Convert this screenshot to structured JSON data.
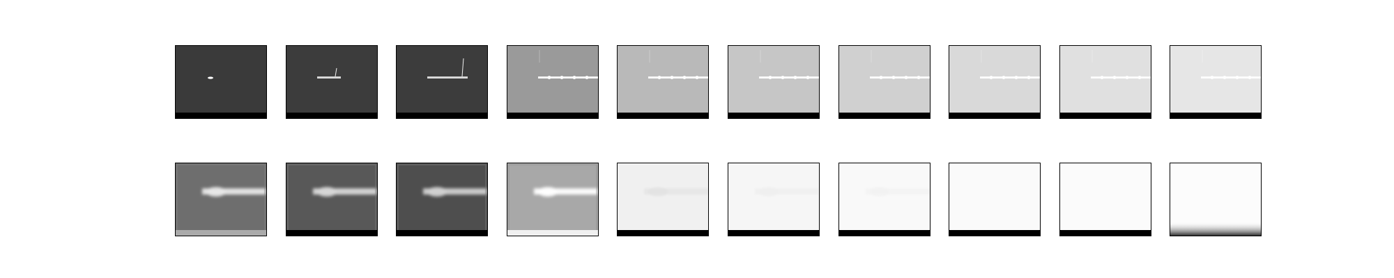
{
  "figure": {
    "rows": [
      {
        "name": "top-row",
        "panels": [
          {
            "bg": "#3a3a3a",
            "streak": "#ffffff",
            "bar": "#000000",
            "variant": "dot"
          },
          {
            "bg": "#3c3c3c",
            "streak": "#f2f2f2",
            "bar": "#000000",
            "variant": "boat-short"
          },
          {
            "bg": "#3c3c3c",
            "streak": "#f2f2f2",
            "bar": "#000000",
            "variant": "boat-long"
          },
          {
            "bg": "#9a9a9a",
            "streak": "#ffffff",
            "bar": "#000000",
            "variant": "line"
          },
          {
            "bg": "#b9b9b9",
            "streak": "#ffffff",
            "bar": "#000000",
            "variant": "line"
          },
          {
            "bg": "#c6c6c6",
            "streak": "#ffffff",
            "bar": "#000000",
            "variant": "line"
          },
          {
            "bg": "#d0d0d0",
            "streak": "#ffffff",
            "bar": "#000000",
            "variant": "line"
          },
          {
            "bg": "#d9d9d9",
            "streak": "#ffffff",
            "bar": "#000000",
            "variant": "line"
          },
          {
            "bg": "#e0e0e0",
            "streak": "#ffffff",
            "bar": "#000000",
            "variant": "line"
          },
          {
            "bg": "#e6e6e6",
            "streak": "#ffffff",
            "bar": "#000000",
            "variant": "line"
          }
        ]
      },
      {
        "name": "bottom-row",
        "panels": [
          {
            "bg": "#6e6e6e",
            "streak": "#e8e8e8",
            "bar": "#aaaaaa",
            "variant": "blur"
          },
          {
            "bg": "#585858",
            "streak": "#d8d8d8",
            "bar": "#000000",
            "variant": "blur"
          },
          {
            "bg": "#4e4e4e",
            "streak": "#d0d0d0",
            "bar": "#000000",
            "variant": "blur"
          },
          {
            "bg": "#a8a8a8",
            "streak": "#ffffff",
            "bar": "#f0f0f0",
            "variant": "blur"
          },
          {
            "bg": "#f0f0f0",
            "streak": "#e2e2e2",
            "bar": "#000000",
            "variant": "faint"
          },
          {
            "bg": "#f6f6f6",
            "streak": "#eeeeee",
            "bar": "#000000",
            "variant": "faint"
          },
          {
            "bg": "#f9f9f9",
            "streak": "#f2f2f2",
            "bar": "#000000",
            "variant": "faint"
          },
          {
            "bg": "#fafafa",
            "streak": "#f6f6f6",
            "bar": "#000000",
            "variant": "plain"
          },
          {
            "bg": "#fbfbfb",
            "streak": "#fbfbfb",
            "bar": "#000000",
            "variant": "plain"
          },
          {
            "bg": "#fcfcfc",
            "streak": "#fcfcfc",
            "bar": "#303030",
            "variant": "fade"
          }
        ]
      }
    ]
  }
}
